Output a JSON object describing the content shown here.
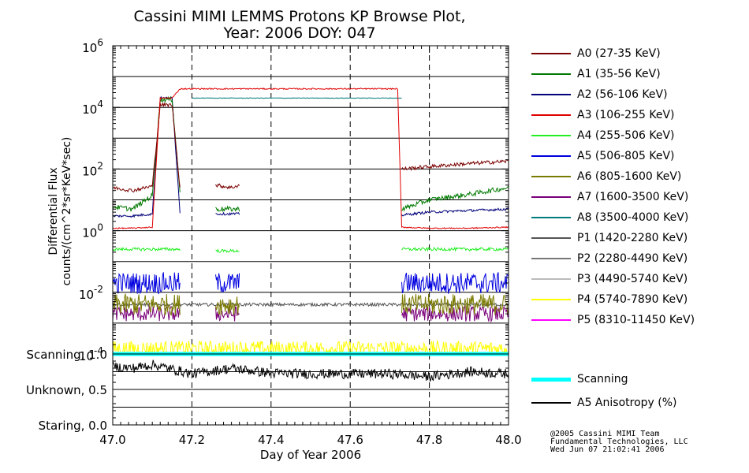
{
  "title_line1": "Cassini MIMI LEMMS Protons KP Browse Plot,",
  "title_line2": "Year: 2006 DOY: 047",
  "ylabel_line1": "Differential Flux",
  "ylabel_line2": "counts/(cm^2*sr*KeV*sec)",
  "credits": [
    "@2005 Cassini MIMI Team",
    "Fundamental Technologies, LLC",
    "Wed Jun 07 21:02:41 2006"
  ],
  "colors": {
    "A0": "#7a0000",
    "A1": "#007a00",
    "A2": "#00007a",
    "A3": "#e00000",
    "A4": "#22ee22",
    "A5": "#0000e0",
    "A6": "#7a7a00",
    "A7": "#7a007a",
    "A8": "#007a7a",
    "P1": "#555555",
    "P2": "#777777",
    "P3": "#bbbbbb",
    "P4": "#ffff00",
    "P5": "#ff00ff",
    "scanning": "#00ffff",
    "anisotropy": "#000000"
  },
  "chart_data": [
    {
      "type": "line",
      "name": "flux",
      "xlabel": "Day of Year 2006",
      "xlim": [
        47.0,
        48.0
      ],
      "x_ticks": [
        "47.0",
        "47.2",
        "47.4",
        "47.6",
        "47.8",
        "48.0"
      ],
      "yscale": "log",
      "ylim": [
        0.0001,
        1000000
      ],
      "y_ticks": [
        {
          "base": "10",
          "exp": "-4"
        },
        {
          "base": "10",
          "exp": "-2"
        },
        {
          "base": "10",
          "exp": "0"
        },
        {
          "base": "10",
          "exp": "2"
        },
        {
          "base": "10",
          "exp": "4"
        },
        {
          "base": "10",
          "exp": "6"
        }
      ],
      "vertical_dashed_lines": [
        47.2,
        47.4,
        47.6,
        47.8
      ],
      "data_gaps": [
        [
          47.17,
          47.26
        ],
        [
          47.32,
          47.73
        ]
      ],
      "series": [
        {
          "key": "A0",
          "name": "A0 (27-35 KeV)",
          "x": [
            47.0,
            47.05,
            47.1,
            47.12,
            47.15,
            47.17,
            47.26,
            47.3,
            47.32,
            47.73,
            47.8,
            47.9,
            48.0
          ],
          "y": [
            25,
            20,
            28,
            12000,
            12000,
            25,
            30,
            25,
            30,
            100,
            120,
            150,
            180
          ]
        },
        {
          "key": "A1",
          "name": "A1 (35-56 KeV)",
          "x": [
            47.0,
            47.05,
            47.1,
            47.12,
            47.15,
            47.17,
            47.26,
            47.3,
            47.32,
            47.73,
            47.8,
            47.9,
            48.0
          ],
          "y": [
            6,
            5,
            14,
            18000,
            18000,
            18,
            5,
            5,
            5,
            5,
            10,
            15,
            25
          ]
        },
        {
          "key": "A2",
          "name": "A2 (56-106 KeV)",
          "x": [
            47.0,
            47.05,
            47.1,
            47.12,
            47.15,
            47.17,
            47.26,
            47.3,
            47.32,
            47.73,
            47.8,
            47.9,
            48.0
          ],
          "y": [
            3,
            3,
            3.5,
            20000,
            20000,
            4,
            3.5,
            3.5,
            3.5,
            3.2,
            4,
            4.5,
            5
          ]
        },
        {
          "key": "A3",
          "name": "A3 (106-255 KeV)",
          "x": [
            47.0,
            47.05,
            47.1,
            47.12,
            47.15,
            47.17,
            47.2,
            47.3,
            47.32,
            47.5,
            47.7,
            47.72,
            47.73,
            47.8,
            47.9,
            48.0
          ],
          "y": [
            1.2,
            1.2,
            1.3,
            20000,
            20000,
            40000,
            40000,
            40000,
            40000,
            40000,
            40000,
            40000,
            1.3,
            1.2,
            1.2,
            1.3
          ]
        },
        {
          "key": "A4",
          "name": "A4 (255-506 KeV)",
          "x": [
            47.0,
            47.17,
            47.26,
            47.32,
            47.73,
            48.0
          ],
          "y": [
            0.25,
            0.25,
            0.22,
            0.22,
            0.25,
            0.25
          ]
        },
        {
          "key": "A5",
          "name": "A5 (506-805 KeV)",
          "x": [
            47.0,
            47.17,
            47.26,
            47.32,
            47.73,
            48.0
          ],
          "y": [
            0.02,
            0.02,
            0.02,
            0.02,
            0.02,
            0.02
          ]
        },
        {
          "key": "A6",
          "name": "A6 (805-1600 KeV)",
          "x": [
            47.0,
            47.17,
            47.26,
            47.32,
            47.73,
            48.0
          ],
          "y": [
            0.004,
            0.004,
            0.004,
            0.004,
            0.004,
            0.004
          ]
        },
        {
          "key": "A7",
          "name": "A7 (1600-3500 KeV)",
          "x": [
            47.0,
            47.17,
            47.26,
            47.32,
            47.73,
            48.0
          ],
          "y": [
            0.002,
            0.002,
            0.002,
            0.002,
            0.002,
            0.002
          ]
        },
        {
          "key": "A8",
          "name": "A8 (3500-4000 KeV)",
          "x": [
            47.2,
            47.6,
            47.73
          ],
          "y": [
            20000,
            20000,
            20000
          ]
        },
        {
          "key": "P1",
          "name": "P1 (1420-2280 KeV)",
          "x": [
            47.0,
            47.5,
            48.0
          ],
          "y": [
            0.004,
            0.004,
            0.004
          ]
        },
        {
          "key": "P2",
          "name": "P2 (2280-4490 KeV)",
          "x": [
            47.0,
            48.0
          ],
          "y": [
            0.0001,
            0.0001
          ]
        },
        {
          "key": "P3",
          "name": "P3 (4490-5740 KeV)",
          "x": [
            47.0,
            48.0
          ],
          "y": [
            0.0001,
            0.0001
          ]
        },
        {
          "key": "P4",
          "name": "P4 (5740-7890 KeV)",
          "x": [
            47.0,
            48.0
          ],
          "y": [
            0.00015,
            0.00015
          ]
        },
        {
          "key": "P5",
          "name": "P5 (8310-11450 KeV)",
          "x": [
            47.0,
            48.0
          ],
          "y": [
            0.0001,
            0.0001
          ]
        }
      ]
    },
    {
      "type": "line",
      "name": "anisotropy",
      "xlim": [
        47.0,
        48.0
      ],
      "ylim": [
        0.0,
        1.0
      ],
      "y_ticks": [
        "Staring, 0.0",
        "Unknown, 0.5",
        "Scanning, 1.0"
      ],
      "vertical_dashed_lines": [
        47.2,
        47.4,
        47.6,
        47.8
      ],
      "series": [
        {
          "key": "scanning",
          "name": "Scanning",
          "x": [
            47.0,
            48.0
          ],
          "y": [
            1.0,
            1.0
          ]
        },
        {
          "key": "anisotropy",
          "name": "A5 Anisotropy (%)",
          "x": [
            47.0,
            47.05,
            47.1,
            47.2,
            47.3,
            47.4,
            47.5,
            47.6,
            47.7,
            47.8,
            47.9,
            48.0
          ],
          "y": [
            0.82,
            0.8,
            0.85,
            0.72,
            0.8,
            0.73,
            0.72,
            0.72,
            0.72,
            0.68,
            0.75,
            0.72
          ]
        }
      ]
    }
  ]
}
